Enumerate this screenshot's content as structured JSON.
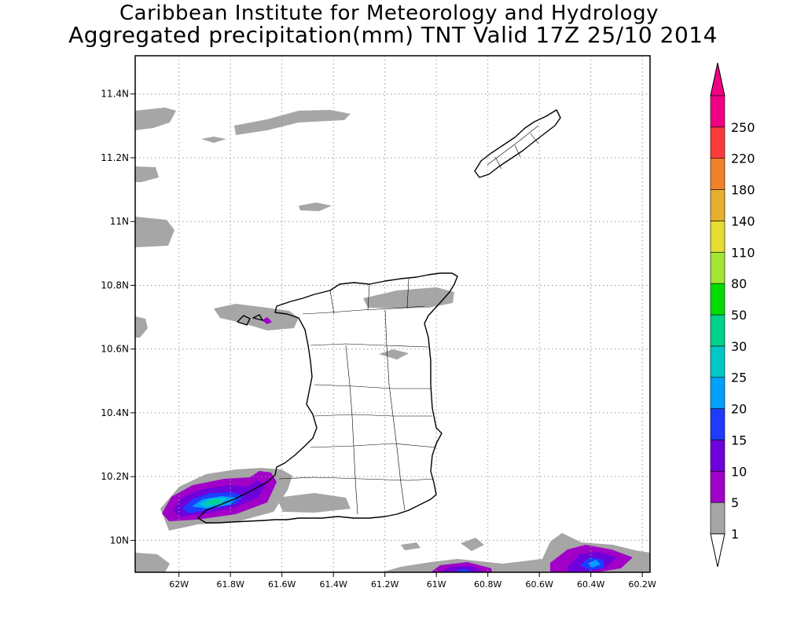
{
  "title": {
    "line1": "Caribbean Institute for Meteorology and Hydrology",
    "line2": "Aggregated precipitation(mm) TNT Valid 17Z 25/10 2014"
  },
  "map": {
    "lat_ticks": [
      {
        "lat": 11.4,
        "label": "11.4N"
      },
      {
        "lat": 11.2,
        "label": "11.2N"
      },
      {
        "lat": 11.0,
        "label": "11N"
      },
      {
        "lat": 10.8,
        "label": "10.8N"
      },
      {
        "lat": 10.6,
        "label": "10.6N"
      },
      {
        "lat": 10.4,
        "label": "10.4N"
      },
      {
        "lat": 10.2,
        "label": "10.2N"
      },
      {
        "lat": 10.0,
        "label": "10N"
      }
    ],
    "lon_ticks": [
      {
        "lon": -62.0,
        "label": "62W"
      },
      {
        "lon": -61.8,
        "label": "61.8W"
      },
      {
        "lon": -61.6,
        "label": "61.6W"
      },
      {
        "lon": -61.4,
        "label": "61.4W"
      },
      {
        "lon": -61.2,
        "label": "61.2W"
      },
      {
        "lon": -61.0,
        "label": "61W"
      },
      {
        "lon": -60.8,
        "label": "60.8W"
      },
      {
        "lon": -60.6,
        "label": "60.6W"
      },
      {
        "lon": -60.4,
        "label": "60.4W"
      },
      {
        "lon": -60.2,
        "label": "60.2W"
      }
    ],
    "lat_range": [
      9.9,
      11.52
    ],
    "lon_range": [
      -62.17,
      -60.17
    ],
    "gridlines": true
  },
  "colorbar": {
    "levels": [
      {
        "label": "1",
        "color": "#a6a6a6"
      },
      {
        "label": "5",
        "color": "#a000c8"
      },
      {
        "label": "10",
        "color": "#6e00dc"
      },
      {
        "label": "15",
        "color": "#1e3cff"
      },
      {
        "label": "20",
        "color": "#00a0ff"
      },
      {
        "label": "25",
        "color": "#00c8c8"
      },
      {
        "label": "30",
        "color": "#00d28c"
      },
      {
        "label": "50",
        "color": "#00dc00"
      },
      {
        "label": "80",
        "color": "#a0e632"
      },
      {
        "label": "110",
        "color": "#e6dc32"
      },
      {
        "label": "140",
        "color": "#e6af2d"
      },
      {
        "label": "180",
        "color": "#f08228"
      },
      {
        "label": "220",
        "color": "#fa3c3c"
      },
      {
        "label": "250",
        "color": "#f00082"
      }
    ],
    "below_color": "#ffffff",
    "above_color": "#f00082"
  }
}
